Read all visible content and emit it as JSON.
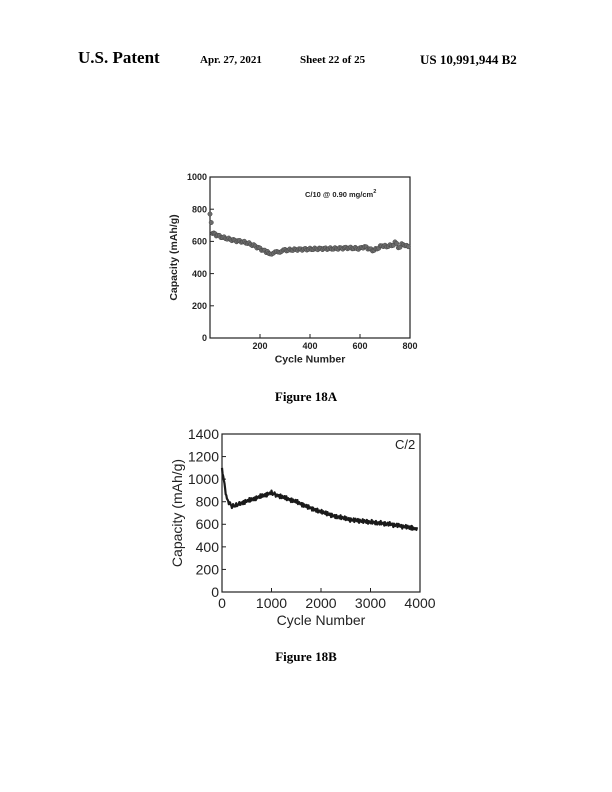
{
  "header": {
    "left": "U.S. Patent",
    "date": "Apr. 27, 2021",
    "sheet": "Sheet 22 of 25",
    "number": "US 10,991,944 B2"
  },
  "figures": [
    {
      "caption": "Figure 18A"
    },
    {
      "caption": "Figure 18B"
    }
  ],
  "chart_data": [
    {
      "type": "scatter",
      "annotation": "C/10 @ 0.90 mg/cm",
      "annotation_sup": "2",
      "xlabel": "Cycle Number",
      "ylabel": "Capacity (mAh/g)",
      "xlim": [
        0,
        800
      ],
      "ylim": [
        0,
        1000
      ],
      "xticks": [
        200,
        400,
        600,
        800
      ],
      "yticks": [
        0,
        200,
        400,
        600,
        800,
        1000
      ],
      "series": [
        {
          "x": [
            0,
            10,
            25,
            50,
            75,
            100,
            125,
            150,
            175,
            200,
            225,
            240,
            260,
            280,
            300,
            350,
            400,
            450,
            500,
            550,
            600,
            650,
            700,
            720,
            740,
            760,
            780,
            800
          ],
          "y": [
            770,
            655,
            640,
            625,
            615,
            605,
            600,
            590,
            575,
            555,
            535,
            525,
            530,
            538,
            545,
            550,
            552,
            555,
            555,
            560,
            555,
            555,
            565,
            575,
            585,
            570,
            580,
            560
          ]
        }
      ]
    },
    {
      "type": "line",
      "annotation": "C/2",
      "xlabel": "Cycle Number",
      "ylabel": "Capacity (mAh/g)",
      "xlim": [
        0,
        4000
      ],
      "ylim": [
        0,
        1400
      ],
      "xticks": [
        0,
        1000,
        2000,
        3000,
        4000
      ],
      "yticks": [
        0,
        200,
        400,
        600,
        800,
        1000,
        1200,
        1400
      ],
      "series": [
        {
          "x": [
            0,
            50,
            100,
            200,
            300,
            400,
            600,
            800,
            1000,
            1100,
            1300,
            1500,
            1700,
            2000,
            2300,
            2600,
            3000,
            3400,
            3800,
            3950
          ],
          "y": [
            1100,
            950,
            820,
            760,
            770,
            790,
            820,
            850,
            880,
            860,
            830,
            800,
            760,
            710,
            670,
            640,
            620,
            600,
            570,
            555
          ]
        }
      ]
    }
  ]
}
